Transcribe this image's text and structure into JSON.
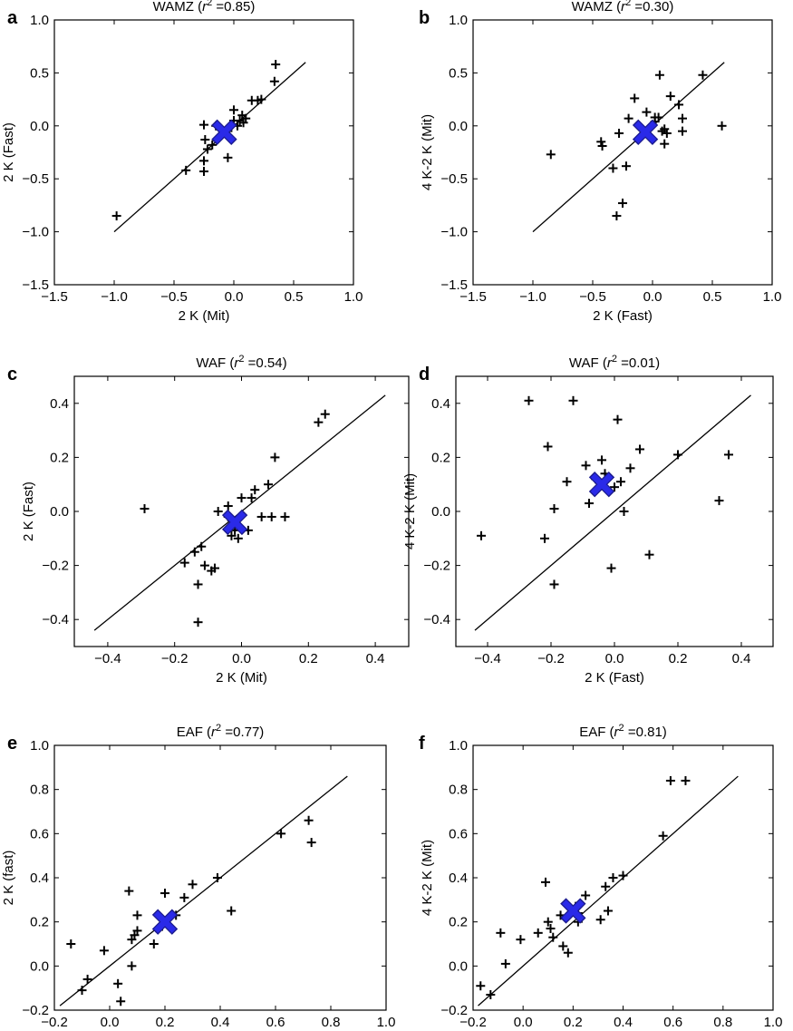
{
  "colors": {
    "marker": "#000000",
    "mean_marker": "#2a2ae8",
    "mean_edge": "#1a1a8c",
    "line": "#000000"
  },
  "chart_data": [
    {
      "type": "scatter",
      "panel": "a",
      "title": {
        "prefix": "WAMZ (",
        "r": "r",
        "exp": "2",
        "suffix": " =0.85)"
      },
      "xlabel": "2 K (Mit)",
      "ylabel": "2 K (Fast)",
      "xlim": [
        -1.5,
        1.0
      ],
      "ylim": [
        -1.5,
        1.0
      ],
      "xticks": [
        -1.5,
        -1.0,
        -0.5,
        0.0,
        0.5,
        1.0
      ],
      "yticks": [
        -1.5,
        -1.0,
        -0.5,
        0.0,
        0.5,
        1.0
      ],
      "xtick_labels": [
        "−1.5",
        "−1.0",
        "−0.5",
        "0.0",
        "0.5",
        "1.0"
      ],
      "ytick_labels": [
        "−1.5",
        "−1.0",
        "−0.5",
        "0.0",
        "0.5",
        "1.0"
      ],
      "identity_line": [
        -1.0,
        0.6
      ],
      "mean": [
        -0.08,
        -0.06
      ],
      "points": [
        [
          -0.98,
          -0.85
        ],
        [
          -0.4,
          -0.42
        ],
        [
          -0.25,
          -0.43
        ],
        [
          -0.25,
          -0.33
        ],
        [
          -0.22,
          -0.22
        ],
        [
          -0.18,
          -0.18
        ],
        [
          -0.25,
          0.01
        ],
        [
          -0.24,
          -0.13
        ],
        [
          -0.15,
          0.0
        ],
        [
          -0.08,
          -0.05
        ],
        [
          -0.05,
          -0.05
        ],
        [
          -0.05,
          -0.3
        ],
        [
          0.0,
          0.05
        ],
        [
          0.0,
          0.15
        ],
        [
          0.03,
          0.0
        ],
        [
          0.05,
          0.05
        ],
        [
          0.07,
          0.1
        ],
        [
          0.08,
          0.03
        ],
        [
          0.1,
          0.07
        ],
        [
          0.15,
          0.24
        ],
        [
          0.2,
          0.24
        ],
        [
          0.23,
          0.25
        ],
        [
          0.34,
          0.42
        ],
        [
          0.35,
          0.58
        ],
        [
          -0.02,
          0.0
        ],
        [
          -0.12,
          -0.02
        ]
      ]
    },
    {
      "type": "scatter",
      "panel": "b",
      "title": {
        "prefix": "WAMZ (",
        "r": "r",
        "exp": "2",
        "suffix": " =0.30)"
      },
      "xlabel": "2 K (Fast)",
      "ylabel": "4 K-2 K (Mit)",
      "xlim": [
        -1.5,
        1.0
      ],
      "ylim": [
        -1.5,
        1.0
      ],
      "xticks": [
        -1.5,
        -1.0,
        -0.5,
        0.0,
        0.5,
        1.0
      ],
      "yticks": [
        -1.5,
        -1.0,
        -0.5,
        0.0,
        0.5,
        1.0
      ],
      "xtick_labels": [
        "−1.5",
        "−1.0",
        "−0.5",
        "0.0",
        "0.5",
        "1.0"
      ],
      "ytick_labels": [
        "−1.5",
        "−1.0",
        "−0.5",
        "0.0",
        "0.5",
        "1.0"
      ],
      "identity_line": [
        -1.0,
        0.6
      ],
      "mean": [
        -0.06,
        -0.06
      ],
      "points": [
        [
          -0.85,
          -0.27
        ],
        [
          -0.43,
          -0.15
        ],
        [
          -0.42,
          -0.19
        ],
        [
          -0.33,
          -0.4
        ],
        [
          -0.3,
          -0.85
        ],
        [
          -0.25,
          -0.73
        ],
        [
          -0.22,
          -0.38
        ],
        [
          -0.2,
          0.07
        ],
        [
          -0.15,
          0.26
        ],
        [
          -0.05,
          0.13
        ],
        [
          0.02,
          0.04
        ],
        [
          0.05,
          0.08
        ],
        [
          0.06,
          0.48
        ],
        [
          0.08,
          -0.05
        ],
        [
          0.1,
          -0.17
        ],
        [
          0.1,
          -0.03
        ],
        [
          0.12,
          -0.07
        ],
        [
          0.15,
          0.28
        ],
        [
          0.22,
          0.2
        ],
        [
          0.25,
          -0.05
        ],
        [
          0.25,
          0.07
        ],
        [
          0.42,
          0.48
        ],
        [
          0.58,
          0.0
        ],
        [
          -0.28,
          -0.07
        ],
        [
          0.02,
          0.08
        ]
      ]
    },
    {
      "type": "scatter",
      "panel": "c",
      "title": {
        "prefix": "WAF (",
        "r": "r",
        "exp": "2",
        "suffix": " =0.54)"
      },
      "xlabel": "2 K (Mit)",
      "ylabel": "2 K (Fast)",
      "xlim": [
        -0.5,
        0.5
      ],
      "ylim": [
        -0.5,
        0.5
      ],
      "xticks": [
        -0.4,
        -0.2,
        0.0,
        0.2,
        0.4
      ],
      "yticks": [
        -0.4,
        -0.2,
        0.0,
        0.2,
        0.4
      ],
      "xtick_labels": [
        "−0.4",
        "−0.2",
        "0.0",
        "0.2",
        "0.4"
      ],
      "ytick_labels": [
        "−0.4",
        "−0.2",
        "0.0",
        "0.2",
        "0.4"
      ],
      "identity_line": [
        -0.44,
        0.43
      ],
      "mean": [
        -0.02,
        -0.04
      ],
      "points": [
        [
          -0.29,
          0.01
        ],
        [
          -0.17,
          -0.19
        ],
        [
          -0.14,
          -0.15
        ],
        [
          -0.13,
          -0.27
        ],
        [
          -0.12,
          -0.13
        ],
        [
          -0.13,
          -0.41
        ],
        [
          -0.11,
          -0.2
        ],
        [
          -0.09,
          -0.22
        ],
        [
          -0.08,
          -0.21
        ],
        [
          -0.07,
          0.0
        ],
        [
          -0.04,
          0.02
        ],
        [
          -0.03,
          -0.09
        ],
        [
          -0.02,
          -0.07
        ],
        [
          -0.01,
          -0.1
        ],
        [
          0.0,
          0.05
        ],
        [
          0.02,
          -0.07
        ],
        [
          0.03,
          0.05
        ],
        [
          0.04,
          0.08
        ],
        [
          0.06,
          -0.02
        ],
        [
          0.08,
          0.1
        ],
        [
          0.09,
          -0.02
        ],
        [
          0.1,
          0.2
        ],
        [
          0.13,
          -0.02
        ],
        [
          0.23,
          0.33
        ],
        [
          0.25,
          0.36
        ],
        [
          -0.04,
          -0.02
        ]
      ]
    },
    {
      "type": "scatter",
      "panel": "d",
      "title": {
        "prefix": "WAF (",
        "r": "r",
        "exp": "2",
        "suffix": " =0.01)"
      },
      "xlabel": "2 K (Fast)",
      "ylabel": "4 K-2 K (Mit)",
      "xlim": [
        -0.5,
        0.5
      ],
      "ylim": [
        -0.5,
        0.5
      ],
      "xticks": [
        -0.4,
        -0.2,
        0.0,
        0.2,
        0.4
      ],
      "yticks": [
        -0.4,
        -0.2,
        0.0,
        0.2,
        0.4
      ],
      "xtick_labels": [
        "−0.4",
        "−0.2",
        "0.0",
        "0.2",
        "0.4"
      ],
      "ytick_labels": [
        "−0.4",
        "−0.2",
        "0.0",
        "0.2",
        "0.4"
      ],
      "identity_line": [
        -0.44,
        0.43
      ],
      "mean": [
        -0.04,
        0.1
      ],
      "points": [
        [
          -0.42,
          -0.09
        ],
        [
          -0.27,
          0.41
        ],
        [
          -0.22,
          -0.1
        ],
        [
          -0.21,
          0.24
        ],
        [
          -0.19,
          0.01
        ],
        [
          -0.19,
          -0.27
        ],
        [
          -0.15,
          0.11
        ],
        [
          -0.13,
          0.41
        ],
        [
          -0.09,
          0.17
        ],
        [
          -0.08,
          0.03
        ],
        [
          -0.06,
          0.12
        ],
        [
          -0.04,
          0.19
        ],
        [
          -0.03,
          0.14
        ],
        [
          -0.01,
          -0.21
        ],
        [
          0.0,
          0.09
        ],
        [
          0.01,
          0.34
        ],
        [
          0.02,
          0.11
        ],
        [
          0.03,
          0.0
        ],
        [
          0.05,
          0.16
        ],
        [
          0.08,
          0.23
        ],
        [
          0.11,
          -0.16
        ],
        [
          0.2,
          0.21
        ],
        [
          0.33,
          0.04
        ],
        [
          0.36,
          0.21
        ]
      ]
    },
    {
      "type": "scatter",
      "panel": "e",
      "title": {
        "prefix": "EAF (",
        "r": "r",
        "exp": "2",
        "suffix": " =0.77)"
      },
      "xlabel": "2 K (Mit)",
      "ylabel": "2 K (fast)",
      "xlim": [
        -0.2,
        1.0
      ],
      "ylim": [
        -0.2,
        1.0
      ],
      "xticks": [
        -0.2,
        0.0,
        0.2,
        0.4,
        0.6,
        0.8,
        1.0
      ],
      "yticks": [
        -0.2,
        0.0,
        0.2,
        0.4,
        0.6,
        0.8,
        1.0
      ],
      "xtick_labels": [
        "−0.2",
        "0.0",
        "0.2",
        "0.4",
        "0.6",
        "0.8",
        "1.0"
      ],
      "ytick_labels": [
        "−0.2",
        "0.0",
        "0.2",
        "0.4",
        "0.6",
        "0.8",
        "1.0"
      ],
      "identity_line": [
        -0.18,
        0.86
      ],
      "mean": [
        0.2,
        0.2
      ],
      "points": [
        [
          -0.14,
          0.1
        ],
        [
          -0.1,
          -0.11
        ],
        [
          -0.08,
          -0.06
        ],
        [
          -0.02,
          0.07
        ],
        [
          0.03,
          -0.08
        ],
        [
          0.04,
          -0.16
        ],
        [
          0.07,
          0.34
        ],
        [
          0.08,
          0.0
        ],
        [
          0.08,
          0.12
        ],
        [
          0.09,
          0.14
        ],
        [
          0.1,
          0.23
        ],
        [
          0.1,
          0.16
        ],
        [
          0.16,
          0.1
        ],
        [
          0.2,
          0.33
        ],
        [
          0.24,
          0.23
        ],
        [
          0.27,
          0.31
        ],
        [
          0.3,
          0.37
        ],
        [
          0.39,
          0.4
        ],
        [
          0.44,
          0.25
        ],
        [
          0.62,
          0.6
        ],
        [
          0.72,
          0.66
        ],
        [
          0.73,
          0.56
        ],
        [
          0.19,
          0.18
        ]
      ]
    },
    {
      "type": "scatter",
      "panel": "f",
      "title": {
        "prefix": "EAF (",
        "r": "r",
        "exp": "2",
        "suffix": " =0.81)"
      },
      "xlabel": "2 K (Fast)",
      "ylabel": "4 K-2 K (Mit)",
      "xlim": [
        -0.2,
        1.0
      ],
      "ylim": [
        -0.2,
        1.0
      ],
      "xticks": [
        -0.2,
        0.0,
        0.2,
        0.4,
        0.6,
        0.8,
        1.0
      ],
      "yticks": [
        -0.2,
        0.0,
        0.2,
        0.4,
        0.6,
        0.8,
        1.0
      ],
      "xtick_labels": [
        "−0.2",
        "0.0",
        "0.2",
        "0.4",
        "0.6",
        "0.8",
        "1.0"
      ],
      "ytick_labels": [
        "−0.2",
        "0.0",
        "0.2",
        "0.4",
        "0.6",
        "0.8",
        "1.0"
      ],
      "identity_line": [
        -0.18,
        0.86
      ],
      "mean": [
        0.2,
        0.25
      ],
      "points": [
        [
          -0.17,
          -0.09
        ],
        [
          -0.13,
          -0.13
        ],
        [
          -0.09,
          0.15
        ],
        [
          -0.07,
          0.01
        ],
        [
          -0.01,
          0.12
        ],
        [
          0.06,
          0.15
        ],
        [
          0.09,
          0.38
        ],
        [
          0.1,
          0.2
        ],
        [
          0.11,
          0.17
        ],
        [
          0.12,
          0.13
        ],
        [
          0.16,
          0.09
        ],
        [
          0.18,
          0.06
        ],
        [
          0.21,
          0.27
        ],
        [
          0.22,
          0.2
        ],
        [
          0.25,
          0.32
        ],
        [
          0.31,
          0.21
        ],
        [
          0.33,
          0.36
        ],
        [
          0.34,
          0.25
        ],
        [
          0.36,
          0.4
        ],
        [
          0.4,
          0.41
        ],
        [
          0.56,
          0.59
        ],
        [
          0.59,
          0.84
        ],
        [
          0.65,
          0.84
        ],
        [
          0.15,
          0.23
        ],
        [
          0.22,
          0.24
        ]
      ]
    }
  ]
}
